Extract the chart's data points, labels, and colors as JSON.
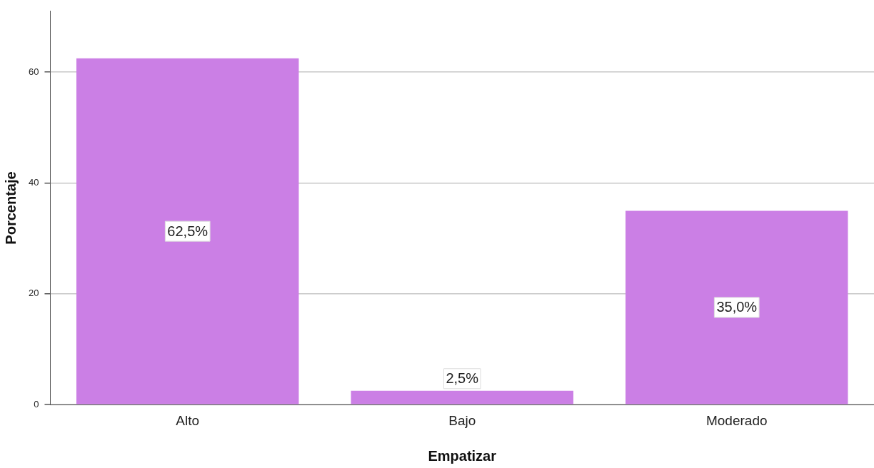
{
  "chart_data": {
    "type": "bar",
    "xlabel": "Empatizar",
    "ylabel": "Porcentaje",
    "categories": [
      "Alto",
      "Bajo",
      "Moderado"
    ],
    "values": [
      62.5,
      2.5,
      35.0
    ],
    "value_labels": [
      "62,5%",
      "2,5%",
      "35,0%"
    ],
    "color": "#cb7fe5",
    "ylim": [
      0,
      71
    ],
    "yticks": [
      0,
      20,
      40,
      60
    ],
    "grid": "y",
    "legend": false
  }
}
